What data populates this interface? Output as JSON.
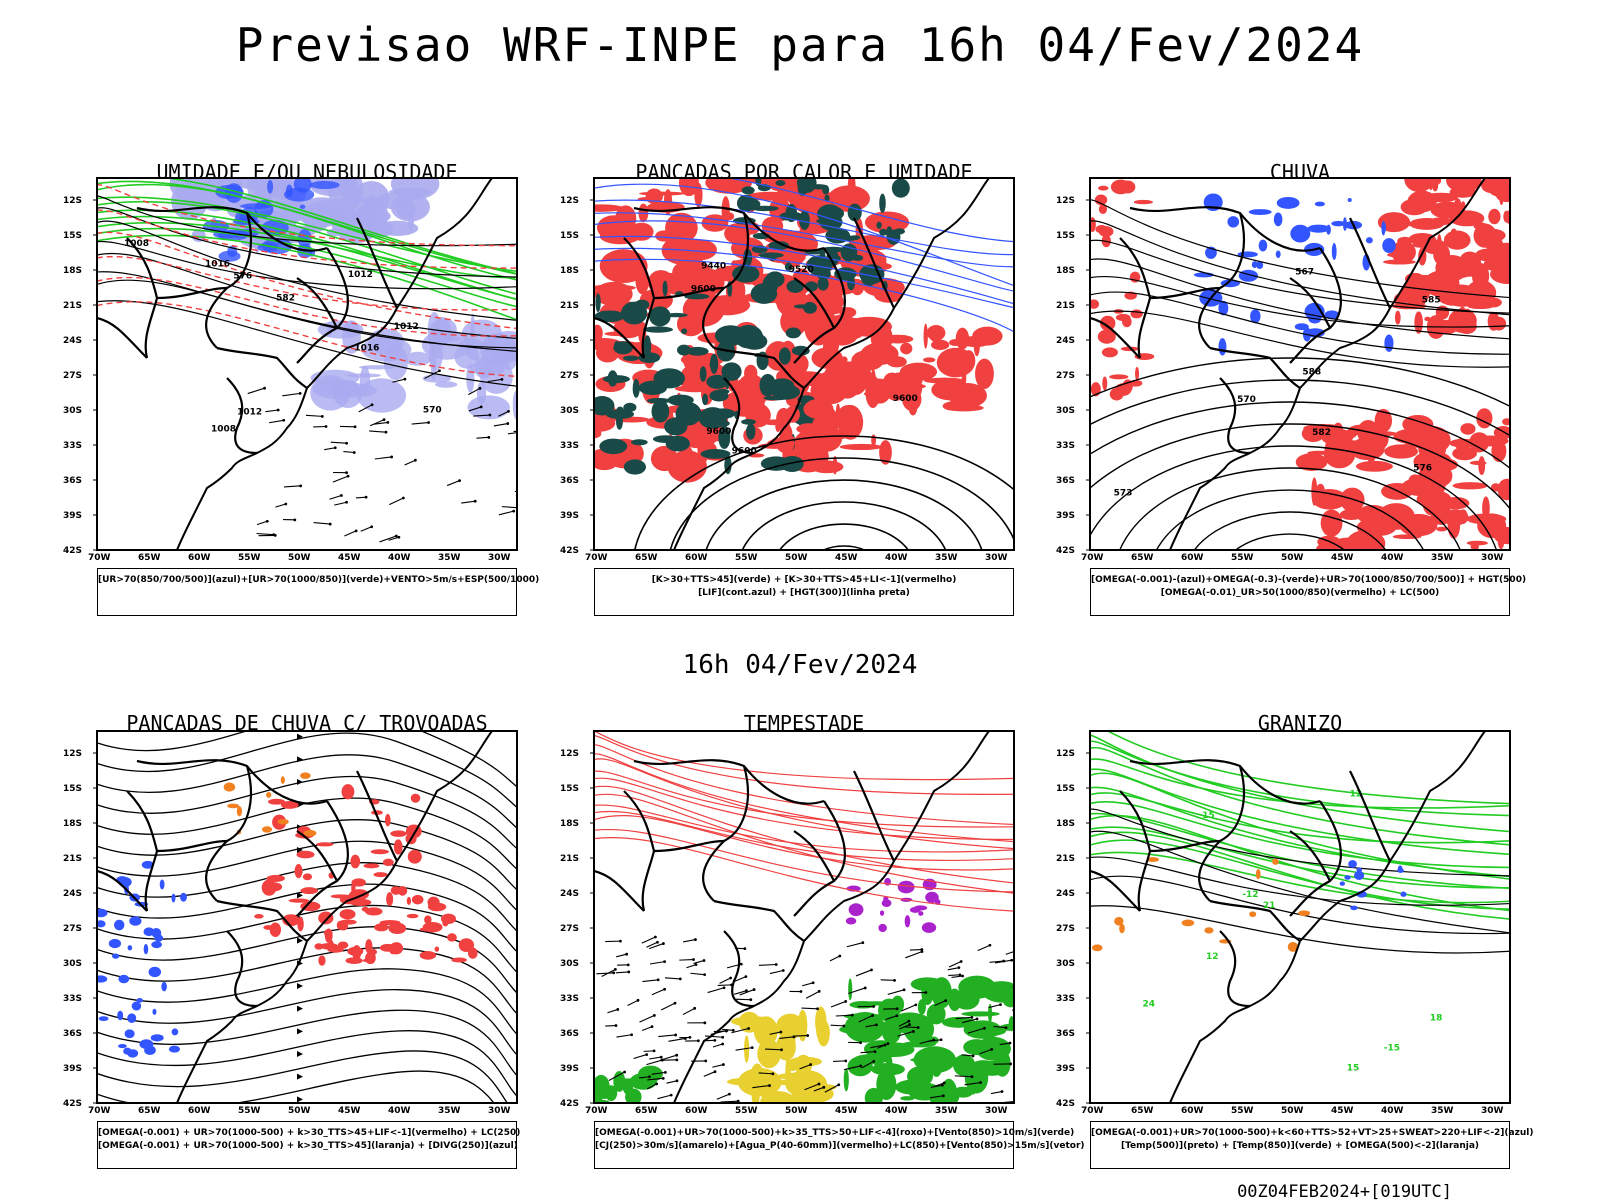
{
  "title": "Previsao WRF-INPE  para 16h 04/Fev/2024",
  "mid_time": "16h 04/Fev/2024",
  "footer": "00Z04FEB2024+[019UTC]",
  "lat_ticks": [
    "12S",
    "15S",
    "18S",
    "21S",
    "24S",
    "27S",
    "30S",
    "33S",
    "36S",
    "39S",
    "42S"
  ],
  "lon_ticks": [
    "70W",
    "65W",
    "60W",
    "55W",
    "50W",
    "45W",
    "40W",
    "35W",
    "30W"
  ],
  "panels": [
    {
      "title": "UMIDADE E/OU NEBULOSIDADE",
      "legend": [
        "[UR>70(850/700/500)](azul)+[UR>70(1000/850)](verde)+VENTO>5m/s+ESP(500/1000)"
      ]
    },
    {
      "title": "PANCADAS POR CALOR E UMIDADE",
      "legend": [
        "[K>30+TTS>45](verde)  +  [K>30+TTS>45+LI<-1](vermelho)",
        "[LIF](cont.azul)  +  [HGT(300)](linha preta)"
      ]
    },
    {
      "title": "CHUVA",
      "legend": [
        "[OMEGA(-0.001)-(azul)+OMEGA(-0.3)-(verde)+UR>70(1000/850/700/500)]  +  HGT(500)",
        "[OMEGA(-0.01)_UR>50(1000/850)(vermelho)  +  LC(500)"
      ]
    },
    {
      "title": "PANCADAS DE CHUVA C/ TROVOADAS",
      "legend": [
        "[OMEGA(-0.001)  +  UR>70(1000-500)  +  k>30_TTS>45+LIF<-1](vermelho)  +  LC(250)",
        "[OMEGA(-0.001)  +  UR>70(1000-500)  +  k>30_TTS>45](laranja)  +  [DIVG(250)](azul)"
      ]
    },
    {
      "title": "TEMPESTADE",
      "legend": [
        "[OMEGA(-0.001)+UR>70(1000-500)+k>35_TTS>50+LIF<-4](roxo)+[Vento(850)>10m/s](verde)",
        "[CJ(250)>30m/s](amarelo)+[Agua_P(40-60mm)](vermelho)+LC(850)+[Vento(850)>15m/s](vetor)"
      ]
    },
    {
      "title": "GRANIZO",
      "legend": [
        "[OMEGA(-0.001)+UR>70(1000-500)+k<60+TTS>52+VT>25+SWEAT>220+LIF<-2](azul)",
        "[Temp(500)](preto)  +  [Temp(850)](verde)  +  [OMEGA(500)<-2](laranja)"
      ]
    }
  ],
  "contour_labels": {
    "p1": [
      "1008",
      "1012",
      "1016",
      "1012",
      "576",
      "570",
      "582",
      "1016",
      "1008",
      "1012"
    ],
    "p2": [
      "9600",
      "9600",
      "9520",
      "9440",
      "9600",
      "9600"
    ],
    "p3": [
      "585",
      "582",
      "576",
      "570",
      "567",
      "573",
      "588"
    ],
    "p6": [
      "12",
      "15",
      "18",
      "21",
      "24",
      "-12",
      "-15",
      "12",
      "15"
    ]
  },
  "colors": {
    "blue": "#3355ff",
    "lavender": "#aaaaf0",
    "green": "#22cc22",
    "red": "#f04040",
    "dark_teal": "#1a4a48",
    "orange": "#f08020",
    "purple": "#aa22cc",
    "yellow": "#e8d030"
  }
}
